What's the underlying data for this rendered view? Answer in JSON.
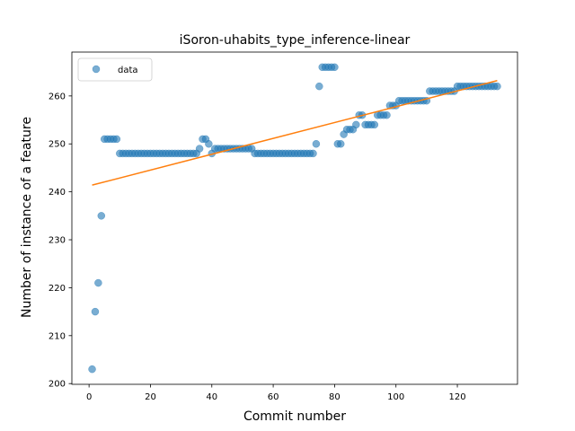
{
  "chart_data": {
    "type": "scatter",
    "title": "iSoron-uhabits_type_inference-linear",
    "xlabel": "Commit number",
    "ylabel": "Number of instance of a feature",
    "xlim": [
      -5.6,
      139.6
    ],
    "ylim": [
      199.85,
      269.15
    ],
    "xticks": [
      0,
      20,
      40,
      60,
      80,
      100,
      120
    ],
    "yticks": [
      200,
      210,
      220,
      230,
      240,
      250,
      260
    ],
    "grid": false,
    "legend": {
      "position": "top-left",
      "entries": [
        "data"
      ]
    },
    "colors": {
      "data": "#1f77b4",
      "fit": "#ff7f0e"
    },
    "series": [
      {
        "name": "data",
        "kind": "scatter",
        "x": [
          1,
          2,
          3,
          4,
          5,
          6,
          7,
          8,
          9,
          10,
          11,
          12,
          13,
          14,
          15,
          16,
          17,
          18,
          19,
          20,
          21,
          22,
          23,
          24,
          25,
          26,
          27,
          28,
          29,
          30,
          31,
          32,
          33,
          34,
          35,
          36,
          37,
          38,
          39,
          40,
          41,
          42,
          43,
          44,
          45,
          46,
          47,
          48,
          49,
          50,
          51,
          52,
          53,
          54,
          55,
          56,
          57,
          58,
          59,
          60,
          61,
          62,
          63,
          64,
          65,
          66,
          67,
          68,
          69,
          70,
          71,
          72,
          73,
          74,
          75,
          76,
          77,
          78,
          79,
          80,
          81,
          82,
          83,
          84,
          85,
          86,
          87,
          88,
          89,
          90,
          91,
          92,
          93,
          94,
          95,
          96,
          97,
          98,
          99,
          100,
          101,
          102,
          103,
          104,
          105,
          106,
          107,
          108,
          109,
          110,
          111,
          112,
          113,
          114,
          115,
          116,
          117,
          118,
          119,
          120,
          121,
          122,
          123,
          124,
          125,
          126,
          127,
          128,
          129,
          130,
          131,
          132,
          133
        ],
        "y": [
          203,
          215,
          221,
          235,
          251,
          251,
          251,
          251,
          251,
          248,
          248,
          248,
          248,
          248,
          248,
          248,
          248,
          248,
          248,
          248,
          248,
          248,
          248,
          248,
          248,
          248,
          248,
          248,
          248,
          248,
          248,
          248,
          248,
          248,
          248,
          249,
          251,
          251,
          250,
          248,
          249,
          249,
          249,
          249,
          249,
          249,
          249,
          249,
          249,
          249,
          249,
          249,
          249,
          248,
          248,
          248,
          248,
          248,
          248,
          248,
          248,
          248,
          248,
          248,
          248,
          248,
          248,
          248,
          248,
          248,
          248,
          248,
          248,
          250,
          262,
          266,
          266,
          266,
          266,
          266,
          250,
          250,
          252,
          253,
          253,
          253,
          254,
          256,
          256,
          254,
          254,
          254,
          254,
          256,
          256,
          256,
          256,
          258,
          258,
          258,
          259,
          259,
          259,
          259,
          259,
          259,
          259,
          259,
          259,
          259,
          261,
          261,
          261,
          261,
          261,
          261,
          261,
          261,
          261,
          262,
          262,
          262,
          262,
          262,
          262,
          262,
          262,
          262,
          262,
          262,
          262,
          262,
          262
        ]
      },
      {
        "name": "",
        "kind": "line",
        "x": [
          1,
          133
        ],
        "y": [
          241.4,
          263.2
        ]
      }
    ]
  }
}
